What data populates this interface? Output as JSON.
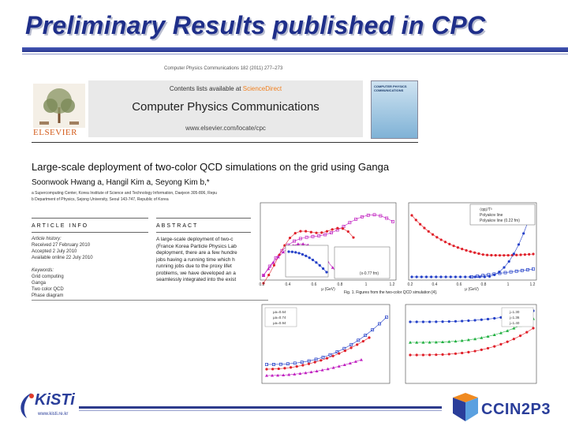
{
  "slide": {
    "title": "Preliminary Results published in CPC"
  },
  "paper": {
    "journal_line": "Computer Physics Communications 182 (2011) 277–273",
    "contents_prefix": "Contents lists available at ",
    "contents_link": "ScienceDirect",
    "journal_name": "Computer Physics Communications",
    "journal_url": "www.elsevier.com/locate/cpc",
    "publisher": "ELSEVIER",
    "cover_title": "COMPUTER PHYSICS COMMUNICATIONS",
    "title": "Large-scale deployment of two-color QCD simulations on the grid using Ganga",
    "authors": "Soonwook Hwang a, Hangil Kim a, Seyong Kim b,*",
    "affiliations": [
      "a Supercomputing Center, Korea Institute of Science and Technology Information, Daejeon 305-806, Repu",
      "b Department of Physics, Sejong University, Seoul 143-747, Republic of Korea"
    ],
    "article_info_heading": "ARTICLE INFO",
    "abstract_heading": "ABSTRACT",
    "article_info": [
      {
        "text": "Article history:",
        "italic": true
      },
      {
        "text": "Received 27 February 2010",
        "italic": false
      },
      {
        "text": "Accepted 2 July 2010",
        "italic": false
      },
      {
        "text": "Available online 22 July 2010",
        "italic": false
      },
      {
        "text": "",
        "italic": false
      },
      {
        "text": "Keywords:",
        "italic": true
      },
      {
        "text": "Grid computing",
        "italic": false
      },
      {
        "text": "Ganga",
        "italic": false
      },
      {
        "text": "Two color QCD",
        "italic": false
      },
      {
        "text": "Phase diagram",
        "italic": false
      }
    ],
    "abstract_lines": [
      "A large-scale deployment of two-c",
      "(France Korea Particle Physics Lab",
      "deployment, there are a few hundre",
      "jobs having a running time which h",
      "running jobs due to the proxy lifet",
      "problems, we have developed an a",
      "seamlessly integrated into the exist"
    ]
  },
  "figures": {
    "caption": "Fig. 1. Figures from the two-color QCD simulation [4].",
    "plot1": {
      "xlabel": "μ (GeV)",
      "xticks": [
        "0.2",
        "0.4",
        "0.6",
        "0.8",
        "1",
        "1.2"
      ],
      "inset_legend": "(x-0.77 fm)"
    },
    "plot2": {
      "xlabel": "μ (GeV)",
      "xticks": [
        "0.2",
        "0.4",
        "0.6",
        "0.8",
        "1",
        "1.2"
      ],
      "legend": [
        "⟨qq⟩/T³",
        "Polyakov line",
        "Polyakov line (0.22 fm)"
      ]
    },
    "plot3": {
      "legend": [
        "μa=0.64",
        "μa=0.74",
        "μa=0.94"
      ]
    },
    "plot4": {
      "legend": [
        "j=1.30",
        "j=1.36",
        "j=1.40"
      ]
    }
  },
  "footer": {
    "kisti_name": "KiSTi",
    "kisti_url": "www.kisti.re.kr",
    "cc_name": "CCIN2P3"
  },
  "colors": {
    "title": "#1f2f8a",
    "rule": "#2b3a90",
    "red": "#e0202a",
    "blue": "#2440c8",
    "magenta": "#c020c0",
    "green": "#20b040"
  }
}
